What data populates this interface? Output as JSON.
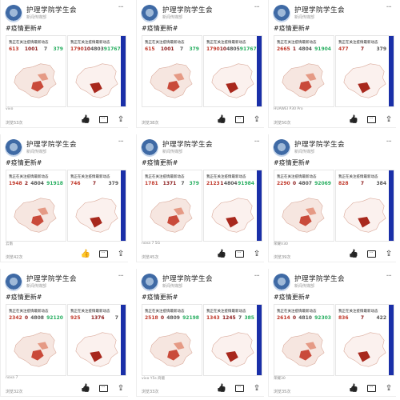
{
  "account": {
    "name": "护理学院学生会",
    "subtitle": "新闻传媒部"
  },
  "hashtag": "#疫情更新#",
  "more_icon": "ellipsis-icon",
  "colors": {
    "accent_blue": "#1a2fa8",
    "like_active": "#f0c419"
  },
  "cards": [
    {
      "chart_title": "我正在关注疫情最新动态",
      "stats": [
        "613",
        "1001",
        "7",
        "379"
      ],
      "right_stats": [
        "1790",
        "10",
        "4803",
        "91767"
      ],
      "device": "vivo",
      "views": "浏览53次",
      "liked": false
    },
    {
      "chart_title": "我正在关注疫情最新动态",
      "stats": [
        "615",
        "1001",
        "7",
        "379"
      ],
      "right_stats": [
        "1790",
        "10",
        "4805",
        "91767"
      ],
      "device": "",
      "views": "浏览38次",
      "liked": false
    },
    {
      "chart_title": "我正在关注疫情最新动态",
      "stats": [
        "2665",
        "1",
        "4804",
        "91904"
      ],
      "right_stats": [
        "477",
        "7",
        "379",
        ""
      ],
      "device": "HUAWEI P30 Pro",
      "views": "浏览50次",
      "liked": false
    },
    {
      "chart_title": "我正在关注疫情最新动态",
      "stats": [
        "1948",
        "2",
        "4804",
        "91918"
      ],
      "right_stats": [
        "746",
        "7",
        "379",
        ""
      ],
      "device": "云南",
      "views": "浏览42次",
      "liked": true
    },
    {
      "chart_title": "我正在关注疫情最新动态",
      "stats": [
        "1781",
        "1371",
        "7",
        "379"
      ],
      "right_stats": [
        "2123",
        "1",
        "4804",
        "91984"
      ],
      "device": "nova 7 5G",
      "views": "浏览45次",
      "liked": false
    },
    {
      "chart_title": "我正在关注疫情最新动态",
      "stats": [
        "2290",
        "0",
        "4807",
        "92069"
      ],
      "right_stats": [
        "828",
        "7",
        "384",
        ""
      ],
      "device": "荣耀V30",
      "views": "浏览39次",
      "liked": false
    },
    {
      "chart_title": "我正在关注疫情最新动态",
      "stats": [
        "2342",
        "0",
        "4808",
        "92120"
      ],
      "right_stats": [
        "925",
        "1376",
        "7",
        ""
      ],
      "device": "nova 7",
      "views": "浏览32次",
      "liked": false
    },
    {
      "chart_title": "我正在关注疫情最新动态",
      "stats": [
        "2518",
        "0",
        "4809",
        "92198"
      ],
      "right_stats": [
        "1343",
        "1245",
        "7",
        "385"
      ],
      "device": "vivo Y5s 商版",
      "views": "浏览33次",
      "liked": false
    },
    {
      "chart_title": "我正在关注疫情最新动态",
      "stats": [
        "2614",
        "0",
        "4810",
        "92303"
      ],
      "right_stats": [
        "836",
        "7",
        "422",
        ""
      ],
      "device": "荣耀30",
      "views": "浏览35次",
      "liked": false
    }
  ]
}
